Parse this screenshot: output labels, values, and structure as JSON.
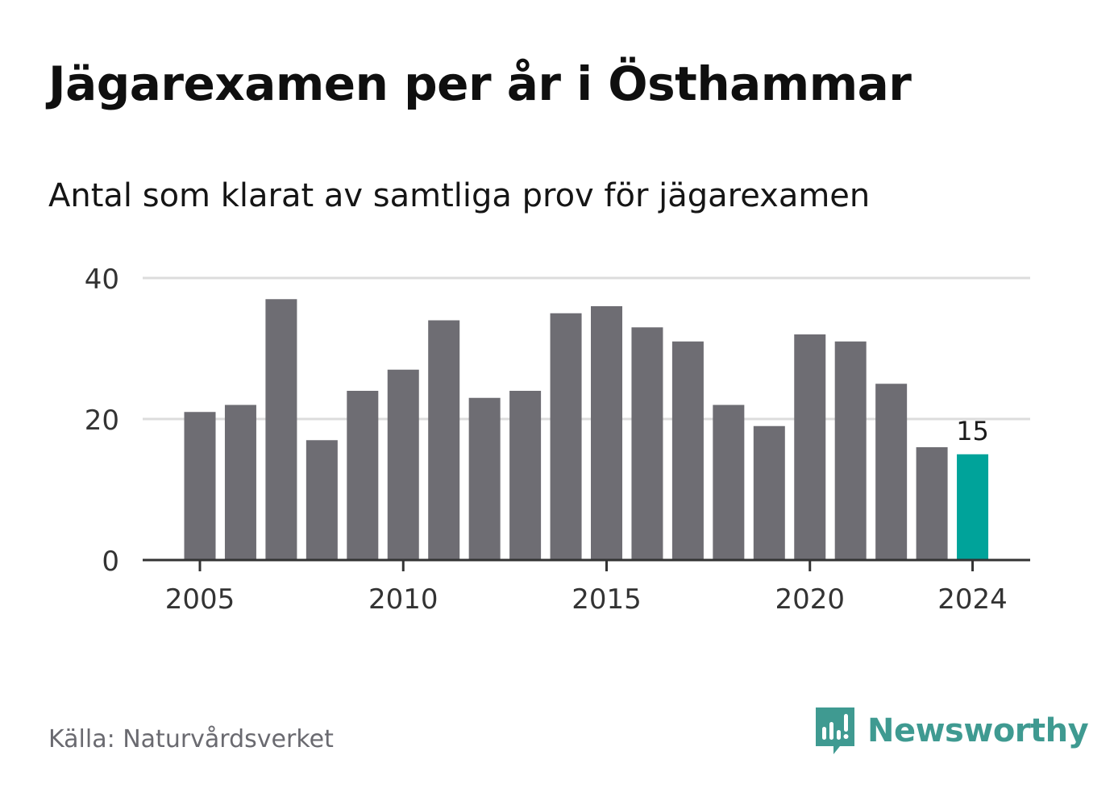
{
  "title": "Jägarexamen per år i Östhammar",
  "subtitle": "Antal som klarat av samtliga prov för jägarexamen",
  "source": "Källa: Naturvårdsverket",
  "brand": {
    "name": "Newsworthy",
    "logo_icon": "newsworthy-logo-icon",
    "color": "#3f9a91"
  },
  "colors": {
    "bar": "#6e6d73",
    "highlight": "#00a39a",
    "gridline": "#dcdcdc",
    "axis": "#333333",
    "text": "#333333"
  },
  "chart_data": {
    "type": "bar",
    "title": "Jägarexamen per år i Östhammar",
    "subtitle": "Antal som klarat av samtliga prov för jägarexamen",
    "xlabel": "",
    "ylabel": "",
    "ylim": [
      0,
      40
    ],
    "yticks": [
      0,
      20,
      40
    ],
    "xticks": [
      2005,
      2010,
      2015,
      2020,
      2024
    ],
    "grid": true,
    "legend": "none",
    "categories": [
      2005,
      2006,
      2007,
      2008,
      2009,
      2010,
      2011,
      2012,
      2013,
      2014,
      2015,
      2016,
      2017,
      2018,
      2019,
      2020,
      2021,
      2022,
      2023,
      2024
    ],
    "values": [
      21,
      22,
      37,
      17,
      24,
      27,
      34,
      23,
      24,
      35,
      36,
      33,
      31,
      22,
      19,
      32,
      31,
      25,
      16,
      15
    ],
    "highlight": {
      "category": 2024,
      "label": "15"
    }
  }
}
